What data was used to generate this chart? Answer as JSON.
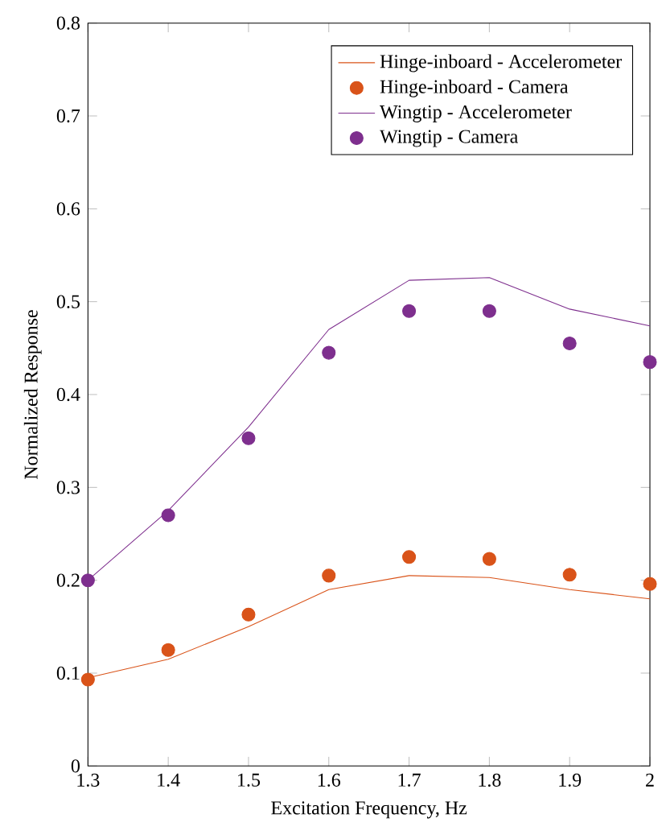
{
  "chart_data": {
    "type": "line",
    "xlabel": "Excitation Frequency, Hz",
    "ylabel": "Normalized Response",
    "x": [
      1.3,
      1.4,
      1.5,
      1.6,
      1.7,
      1.8,
      1.9,
      2.0
    ],
    "series": [
      {
        "name": "Hinge-inboard - Accelerometer",
        "color": "#d95319",
        "marker": "none",
        "values": [
          0.095,
          0.115,
          0.15,
          0.19,
          0.205,
          0.203,
          0.19,
          0.18
        ]
      },
      {
        "name": "Hinge-inboard - Camera",
        "type": "scatter",
        "color": "#d95319",
        "marker": "circle",
        "values": [
          0.093,
          0.125,
          0.163,
          0.205,
          0.225,
          0.223,
          0.206,
          0.196
        ]
      },
      {
        "name": "Wingtip - Accelerometer",
        "color": "#7e2f8e",
        "marker": "none",
        "values": [
          0.2,
          0.275,
          0.365,
          0.47,
          0.523,
          0.526,
          0.492,
          0.474
        ]
      },
      {
        "name": "Wingtip - Camera",
        "type": "scatter",
        "color": "#7e2f8e",
        "marker": "circle",
        "values": [
          0.2,
          0.27,
          0.353,
          0.445,
          0.49,
          0.49,
          0.455,
          0.435
        ]
      }
    ],
    "xlim": [
      1.3,
      2.0
    ],
    "ylim": [
      0,
      0.8
    ],
    "xticks": [
      1.3,
      1.4,
      1.5,
      1.6,
      1.7,
      1.8,
      1.9,
      {
        "value": 2.0,
        "label": "2"
      }
    ],
    "yticks": [
      0,
      0.1,
      0.2,
      0.3,
      0.4,
      0.5,
      0.6,
      0.7,
      0.8
    ],
    "grid": false,
    "legend": "top right"
  }
}
